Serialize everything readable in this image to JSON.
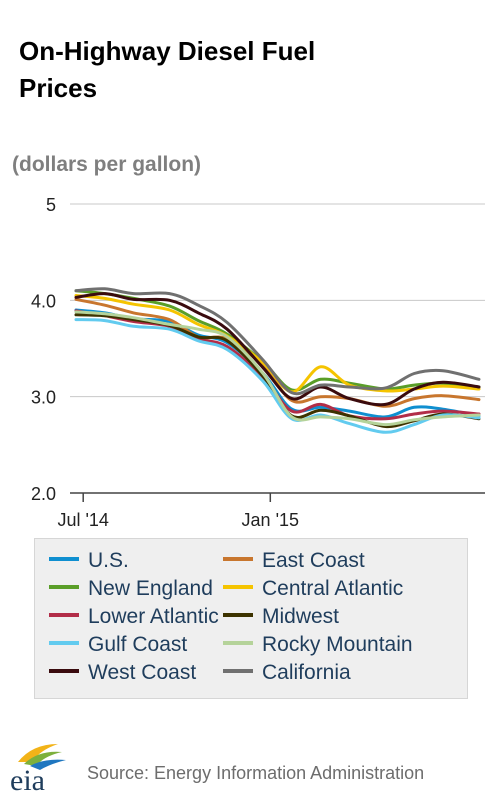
{
  "title": "On-Highway Diesel Fuel Prices",
  "unit_label": "(dollars per gallon)",
  "source": "Source: Energy Information Administration",
  "logo_text": "eia",
  "chart_data": {
    "type": "line",
    "title": "On-Highway Diesel Fuel Prices",
    "ylabel": "(dollars per gallon)",
    "xlabel": "",
    "ylim": [
      2.0,
      5.0
    ],
    "yticks": [
      {
        "label": "5",
        "value": 5
      },
      {
        "label": "4.0",
        "value": 4
      },
      {
        "label": "3.0",
        "value": 3
      },
      {
        "label": "2.0",
        "value": 2
      }
    ],
    "xticks": [
      {
        "label": "Jul '14",
        "date": "2014-07-07"
      },
      {
        "label": "Jan '15",
        "date": "2015-01-05"
      }
    ],
    "x": [
      "2014-06-30",
      "2014-07-28",
      "2014-08-25",
      "2014-09-29",
      "2014-10-27",
      "2014-11-24",
      "2014-12-29",
      "2015-01-26",
      "2015-02-23",
      "2015-03-23",
      "2015-04-27",
      "2015-05-25",
      "2015-06-22",
      "2015-07-27"
    ],
    "grid": true,
    "legend_position": "bottom",
    "series": [
      {
        "name": "U.S.",
        "color": "#0f8fd0",
        "values": [
          3.9,
          3.87,
          3.81,
          3.78,
          3.64,
          3.56,
          3.24,
          2.87,
          2.89,
          2.85,
          2.79,
          2.89,
          2.87,
          2.8
        ]
      },
      {
        "name": "East Coast",
        "color": "#c8762e",
        "values": [
          4.01,
          3.95,
          3.87,
          3.8,
          3.62,
          3.6,
          3.32,
          2.96,
          3.0,
          2.98,
          2.9,
          2.98,
          3.01,
          2.97
        ]
      },
      {
        "name": "New England",
        "color": "#5a9e28",
        "values": [
          4.1,
          4.07,
          4.02,
          3.94,
          3.79,
          3.65,
          3.36,
          3.07,
          3.18,
          3.14,
          3.08,
          3.12,
          3.14,
          3.1
        ]
      },
      {
        "name": "Central Atlantic",
        "color": "#f5c400",
        "values": [
          4.05,
          4.02,
          3.96,
          3.9,
          3.75,
          3.63,
          3.35,
          3.05,
          3.31,
          3.12,
          3.06,
          3.08,
          3.11,
          3.08
        ]
      },
      {
        "name": "Lower Atlantic",
        "color": "#b22d48",
        "values": [
          3.89,
          3.84,
          3.78,
          3.73,
          3.6,
          3.52,
          3.2,
          2.85,
          2.92,
          2.8,
          2.77,
          2.82,
          2.85,
          2.82
        ]
      },
      {
        "name": "Midwest",
        "color": "#3d3300",
        "values": [
          3.85,
          3.84,
          3.8,
          3.74,
          3.62,
          3.58,
          3.21,
          2.8,
          2.86,
          2.8,
          2.69,
          2.75,
          2.82,
          2.77
        ]
      },
      {
        "name": "Gulf Coast",
        "color": "#62cbef",
        "values": [
          3.8,
          3.79,
          3.73,
          3.7,
          3.58,
          3.49,
          3.16,
          2.77,
          2.81,
          2.72,
          2.63,
          2.71,
          2.81,
          2.78
        ]
      },
      {
        "name": "Rocky Mountain",
        "color": "#b5d39a",
        "values": [
          3.88,
          3.86,
          3.82,
          3.75,
          3.7,
          3.62,
          3.24,
          2.79,
          2.79,
          2.77,
          2.71,
          2.76,
          2.79,
          2.81
        ]
      },
      {
        "name": "West Coast",
        "color": "#3a0b0e",
        "values": [
          4.03,
          4.07,
          4.01,
          4.0,
          3.87,
          3.7,
          3.3,
          2.98,
          3.1,
          2.98,
          2.92,
          3.08,
          3.15,
          3.1
        ]
      },
      {
        "name": "California",
        "color": "#707070",
        "values": [
          4.1,
          4.12,
          4.07,
          4.07,
          3.95,
          3.77,
          3.38,
          3.04,
          3.12,
          3.1,
          3.09,
          3.24,
          3.27,
          3.18
        ]
      }
    ]
  }
}
